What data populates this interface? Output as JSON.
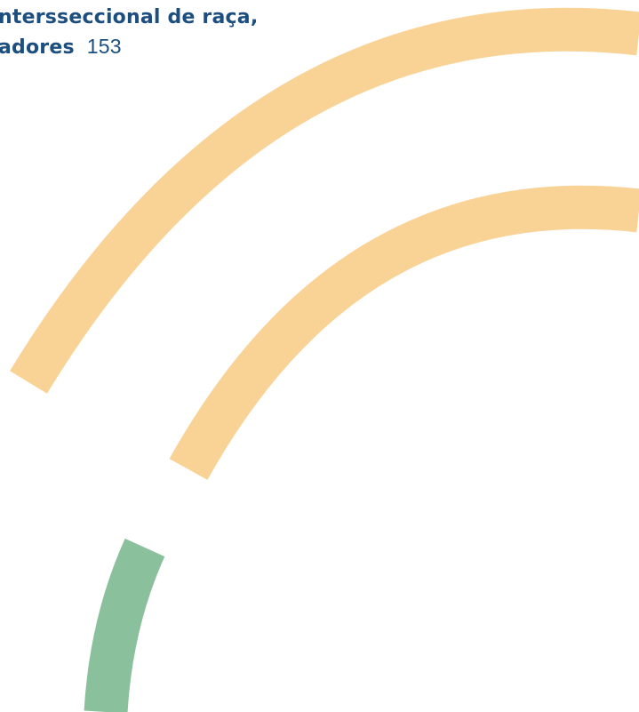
{
  "header": {
    "title_line_1": "ntersseccional de raça,",
    "title_line_2": "adores",
    "page_number": "153"
  },
  "decoration": {
    "colors": {
      "orange_arc": "#f9d296",
      "green_arc": "#8bc09c",
      "text": "#1d4e80"
    }
  }
}
